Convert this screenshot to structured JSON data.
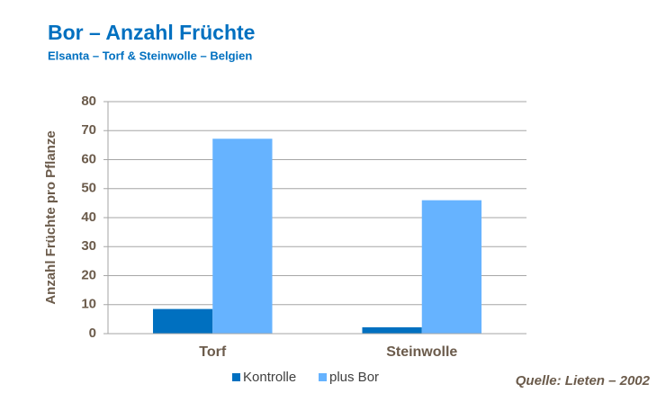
{
  "chart_data": {
    "type": "bar",
    "title": "Bor – Anzahl Früchte",
    "subtitle": "Elsanta – Torf & Steinwolle – Belgien",
    "y_label": "Anzahl Früchte pro Pflanze",
    "source": "Quelle:  Lieten – 2002",
    "categories": [
      "Torf",
      "Steinwolle"
    ],
    "series": [
      {
        "name": "Kontrolle",
        "color": "#0070c0",
        "values": [
          8.5,
          2.2
        ]
      },
      {
        "name": "plus Bor",
        "color": "#66b3ff",
        "values": [
          67.2,
          46
        ]
      }
    ],
    "ylim": [
      0,
      80
    ],
    "yticks": [
      0,
      10,
      20,
      30,
      40,
      50,
      60,
      70,
      80
    ],
    "grid": true,
    "legend": "bottom"
  }
}
